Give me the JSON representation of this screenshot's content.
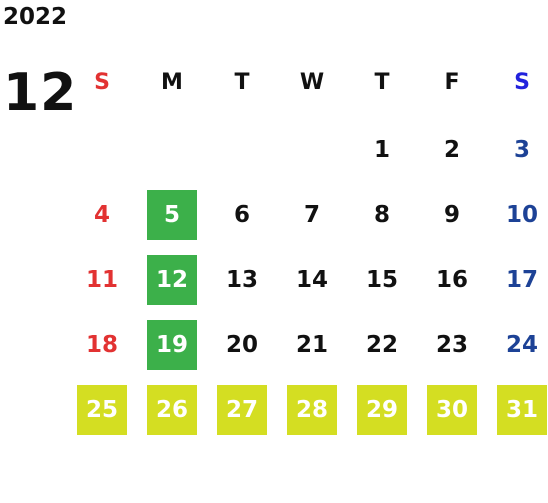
{
  "year": "2022",
  "month": "12",
  "weekdays": [
    "S",
    "M",
    "T",
    "W",
    "T",
    "F",
    "S"
  ],
  "weeks": [
    [
      "",
      "",
      "",
      "",
      "1",
      "2",
      "3"
    ],
    [
      "4",
      "5",
      "6",
      "7",
      "8",
      "9",
      "10"
    ],
    [
      "11",
      "12",
      "13",
      "14",
      "15",
      "16",
      "17"
    ],
    [
      "18",
      "19",
      "20",
      "21",
      "22",
      "23",
      "24"
    ],
    [
      "25",
      "26",
      "27",
      "28",
      "29",
      "30",
      "31"
    ]
  ],
  "colors": {
    "sunday": "#e23232",
    "saturday": "#1d4296",
    "saturday_header": "#2222dd",
    "highlight_green": "#3cb04a",
    "highlight_yellow": "#d4de22"
  }
}
